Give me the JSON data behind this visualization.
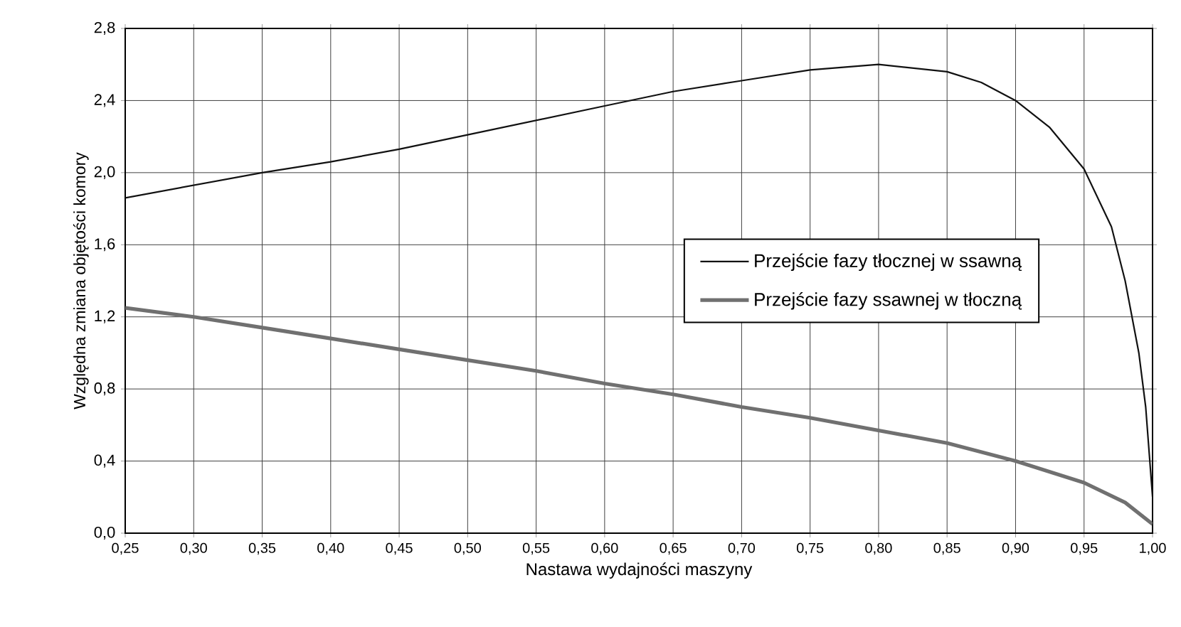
{
  "chart_data": {
    "type": "line",
    "xlabel": "Nastawa wydajności maszyny",
    "ylabel": "Względna zmiana objętości komory",
    "xlim": [
      0.25,
      1.0
    ],
    "ylim": [
      0.0,
      2.8
    ],
    "xticks": [
      {
        "value": 0.25,
        "label": "0,25"
      },
      {
        "value": 0.3,
        "label": "0,30"
      },
      {
        "value": 0.35,
        "label": "0,35"
      },
      {
        "value": 0.4,
        "label": "0,40"
      },
      {
        "value": 0.45,
        "label": "0,45"
      },
      {
        "value": 0.5,
        "label": "0,50"
      },
      {
        "value": 0.55,
        "label": "0,55"
      },
      {
        "value": 0.6,
        "label": "0,60"
      },
      {
        "value": 0.65,
        "label": "0,65"
      },
      {
        "value": 0.7,
        "label": "0,70"
      },
      {
        "value": 0.75,
        "label": "0,75"
      },
      {
        "value": 0.8,
        "label": "0,80"
      },
      {
        "value": 0.85,
        "label": "0,85"
      },
      {
        "value": 0.9,
        "label": "0,90"
      },
      {
        "value": 0.95,
        "label": "0,95"
      },
      {
        "value": 1.0,
        "label": "1,00"
      }
    ],
    "yticks": [
      {
        "value": 0.0,
        "label": "0,0"
      },
      {
        "value": 0.4,
        "label": "0,4"
      },
      {
        "value": 0.8,
        "label": "0,8"
      },
      {
        "value": 1.2,
        "label": "1,2"
      },
      {
        "value": 1.6,
        "label": "1,6"
      },
      {
        "value": 2.0,
        "label": "2,0"
      },
      {
        "value": 2.4,
        "label": "2,4"
      },
      {
        "value": 2.8,
        "label": "2,8"
      }
    ],
    "grid": true,
    "legend": "center right",
    "series": [
      {
        "name": "Przejście fazy tłocznej w ssawną",
        "color": "#111111",
        "x": [
          0.25,
          0.3,
          0.35,
          0.4,
          0.45,
          0.5,
          0.55,
          0.6,
          0.65,
          0.7,
          0.75,
          0.8,
          0.85,
          0.875,
          0.9,
          0.925,
          0.95,
          0.97,
          0.98,
          0.99,
          0.995,
          1.0
        ],
        "values": [
          1.86,
          1.93,
          2.0,
          2.06,
          2.13,
          2.21,
          2.29,
          2.37,
          2.45,
          2.51,
          2.57,
          2.6,
          2.56,
          2.5,
          2.4,
          2.25,
          2.02,
          1.7,
          1.4,
          1.0,
          0.7,
          0.2
        ]
      },
      {
        "name": "Przejście fazy ssawnej w tłoczną",
        "color": "#707070",
        "x": [
          0.25,
          0.3,
          0.35,
          0.4,
          0.45,
          0.5,
          0.55,
          0.6,
          0.65,
          0.7,
          0.75,
          0.8,
          0.85,
          0.9,
          0.95,
          0.98,
          1.0
        ],
        "values": [
          1.25,
          1.2,
          1.14,
          1.08,
          1.02,
          0.96,
          0.9,
          0.83,
          0.77,
          0.7,
          0.64,
          0.57,
          0.5,
          0.4,
          0.28,
          0.17,
          0.05
        ]
      }
    ]
  }
}
